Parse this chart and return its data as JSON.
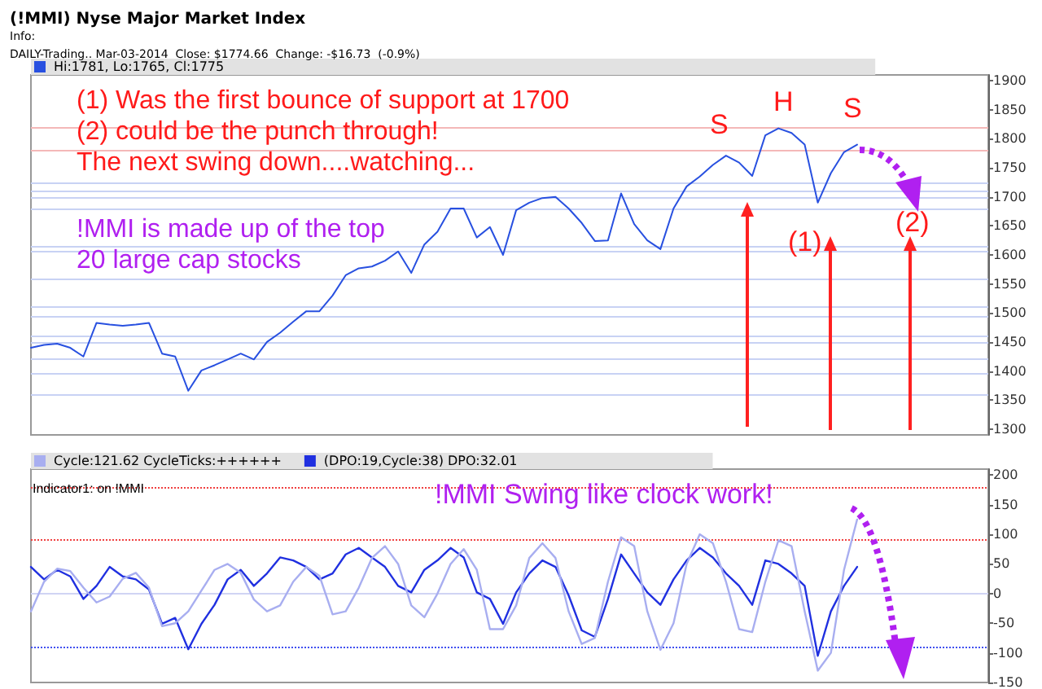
{
  "chart_data": [
    {
      "type": "line",
      "title": "(!MMI) Nyse Major Market Index",
      "subtitle": "Info:\nDAILY-Trading.. Mar-03-2014  Close: $1774.66  Change: -$16.73  (-0.9%)",
      "categories": [
        null,
        null,
        null,
        null,
        null,
        null,
        null,
        null,
        null,
        null,
        null,
        null,
        null,
        null,
        null,
        null,
        null,
        null,
        null,
        null,
        null,
        null,
        null,
        null,
        null,
        null,
        null,
        null,
        null,
        null,
        null,
        null,
        null,
        null,
        null,
        null,
        null,
        null,
        null,
        null,
        null,
        null,
        null,
        null,
        null,
        null,
        null,
        null,
        null,
        null,
        null,
        null,
        null,
        null,
        null,
        null,
        null,
        null,
        null,
        null,
        null,
        null,
        null,
        null,
        null,
        null,
        null,
        null,
        null,
        null,
        null,
        null,
        null,
        null
      ],
      "series": [
        {
          "name": "Hi:1781, Lo:1765, Cl:1775",
          "color": "#2850e0",
          "values": [
            1440,
            1445,
            1447,
            1440,
            1425,
            1483,
            1480,
            1478,
            1480,
            1483,
            1430,
            1425,
            1366,
            1401,
            1410,
            1420,
            1430,
            1420,
            1450,
            1466,
            1485,
            1503,
            1503,
            1530,
            1565,
            1577,
            1580,
            1590,
            1606,
            1569,
            1618,
            1640,
            1680,
            1680,
            1630,
            1648,
            1600,
            1677,
            1690,
            1698,
            1700,
            1680,
            1655,
            1624,
            1625,
            1706,
            1653,
            1625,
            1610,
            1680,
            1718,
            1735,
            1755,
            1771,
            1759,
            1736,
            1806,
            1818,
            1810,
            1790,
            1690,
            1741,
            1777,
            1790,
            null,
            null,
            null,
            null,
            null,
            null,
            null,
            null,
            null,
            null
          ]
        }
      ],
      "ylim": [
        1290,
        1910
      ],
      "yticks": [
        1300,
        1350,
        1400,
        1450,
        1500,
        1550,
        1600,
        1650,
        1700,
        1750,
        1800,
        1850,
        1900
      ],
      "ref_lines": [
        {
          "axis": "y",
          "value": 1820,
          "color": "#f4b8b8"
        },
        {
          "axis": "y",
          "value": 1780,
          "color": "#f4b8b8"
        },
        {
          "axis": "y",
          "value": 1725,
          "color": "#c8d2f4"
        },
        {
          "axis": "y",
          "value": 1710,
          "color": "#c8d2f4"
        },
        {
          "axis": "y",
          "value": 1700,
          "color": "#c8d2f4"
        },
        {
          "axis": "y",
          "value": 1680,
          "color": "#c8d2f4"
        },
        {
          "axis": "y",
          "value": 1615,
          "color": "#c8d2f4"
        },
        {
          "axis": "y",
          "value": 1605,
          "color": "#c8d2f4"
        },
        {
          "axis": "y",
          "value": 1560,
          "color": "#c8d2f4"
        },
        {
          "axis": "y",
          "value": 1510,
          "color": "#c8d2f4"
        },
        {
          "axis": "y",
          "value": 1495,
          "color": "#c8d2f4"
        },
        {
          "axis": "y",
          "value": 1460,
          "color": "#c8d2f4"
        },
        {
          "axis": "y",
          "value": 1450,
          "color": "#c8d2f4"
        },
        {
          "axis": "y",
          "value": 1420,
          "color": "#c8d2f4"
        },
        {
          "axis": "y",
          "value": 1395,
          "color": "#c8d2f4"
        },
        {
          "axis": "y",
          "value": 1360,
          "color": "#c8d2f4"
        }
      ],
      "annotations": [
        "(1) Was the first bounce of support at 1700",
        "(2) could be the punch through!",
        "The next swing down....watching...",
        "!MMI is made up of the top",
        "20 large cap stocks",
        "S",
        "H",
        "S",
        "(1)",
        "(2)"
      ],
      "legend": "top left",
      "grid": false,
      "tick_labels": "y"
    },
    {
      "type": "line",
      "categories": [
        null,
        null,
        null,
        null,
        null,
        null,
        null,
        null,
        null,
        null,
        null,
        null,
        null,
        null,
        null,
        null,
        null,
        null,
        null,
        null,
        null,
        null,
        null,
        null,
        null,
        null,
        null,
        null,
        null,
        null,
        null,
        null,
        null,
        null,
        null,
        null,
        null,
        null,
        null,
        null,
        null,
        null,
        null,
        null,
        null,
        null,
        null,
        null,
        null,
        null,
        null,
        null,
        null,
        null,
        null,
        null,
        null,
        null,
        null,
        null,
        null,
        null,
        null,
        null,
        null,
        null,
        null,
        null,
        null,
        null,
        null,
        null,
        null,
        null
      ],
      "series": [
        {
          "name": "Cycle:121.62 CycleTicks:++++++",
          "color": "#a8aef0",
          "values": [
            -30,
            20,
            42,
            38,
            10,
            -15,
            -5,
            25,
            35,
            10,
            -55,
            -50,
            -30,
            5,
            40,
            50,
            35,
            -10,
            -30,
            -20,
            20,
            45,
            30,
            -35,
            -30,
            10,
            60,
            80,
            50,
            -20,
            -40,
            0,
            50,
            75,
            40,
            -60,
            -60,
            -20,
            60,
            85,
            60,
            -30,
            -85,
            -75,
            20,
            95,
            80,
            -30,
            -95,
            -50,
            50,
            100,
            85,
            20,
            -60,
            -65,
            20,
            90,
            80,
            -30,
            -130,
            -100,
            40,
            125,
            null,
            null,
            null,
            null,
            null,
            null,
            null,
            null,
            null,
            null
          ]
        },
        {
          "name": "(DPO:19,Cycle:38) DPO:32.01",
          "color": "#2030e0",
          "values": [
            45,
            24,
            40,
            29,
            -9,
            13,
            45,
            29,
            24,
            7,
            -51,
            -41,
            -94,
            -51,
            -19,
            24,
            40,
            13,
            34,
            61,
            56,
            45,
            24,
            34,
            66,
            77,
            61,
            45,
            13,
            2,
            40,
            56,
            77,
            61,
            2,
            -9,
            -51,
            2,
            34,
            56,
            45,
            -3,
            -62,
            -73,
            -9,
            66,
            34,
            2,
            -19,
            24,
            56,
            77,
            61,
            34,
            13,
            -19,
            56,
            50,
            34,
            13,
            -105,
            -30,
            13,
            45,
            null,
            null,
            null,
            null,
            null,
            null,
            null,
            null,
            null,
            null
          ]
        }
      ],
      "ylim": [
        -150,
        210
      ],
      "yticks": [
        -150,
        -100,
        -50,
        0,
        50,
        100,
        150,
        200
      ],
      "ref_lines": [
        {
          "axis": "y",
          "value": 180,
          "color": "#f04040",
          "line_style": "dotted"
        },
        {
          "axis": "y",
          "value": 90,
          "color": "#f04040",
          "line_style": "dotted"
        },
        {
          "axis": "y",
          "value": 0,
          "color": "#d0d4f4",
          "line_style": "solid"
        },
        {
          "axis": "y",
          "value": -90,
          "color": "#4050f0",
          "line_style": "dotted"
        }
      ],
      "annotations": [
        "Indicator1: on !MMI",
        "!MMI Swing like clock work!"
      ],
      "legend": "top left",
      "grid": false,
      "tick_labels": "y"
    }
  ]
}
